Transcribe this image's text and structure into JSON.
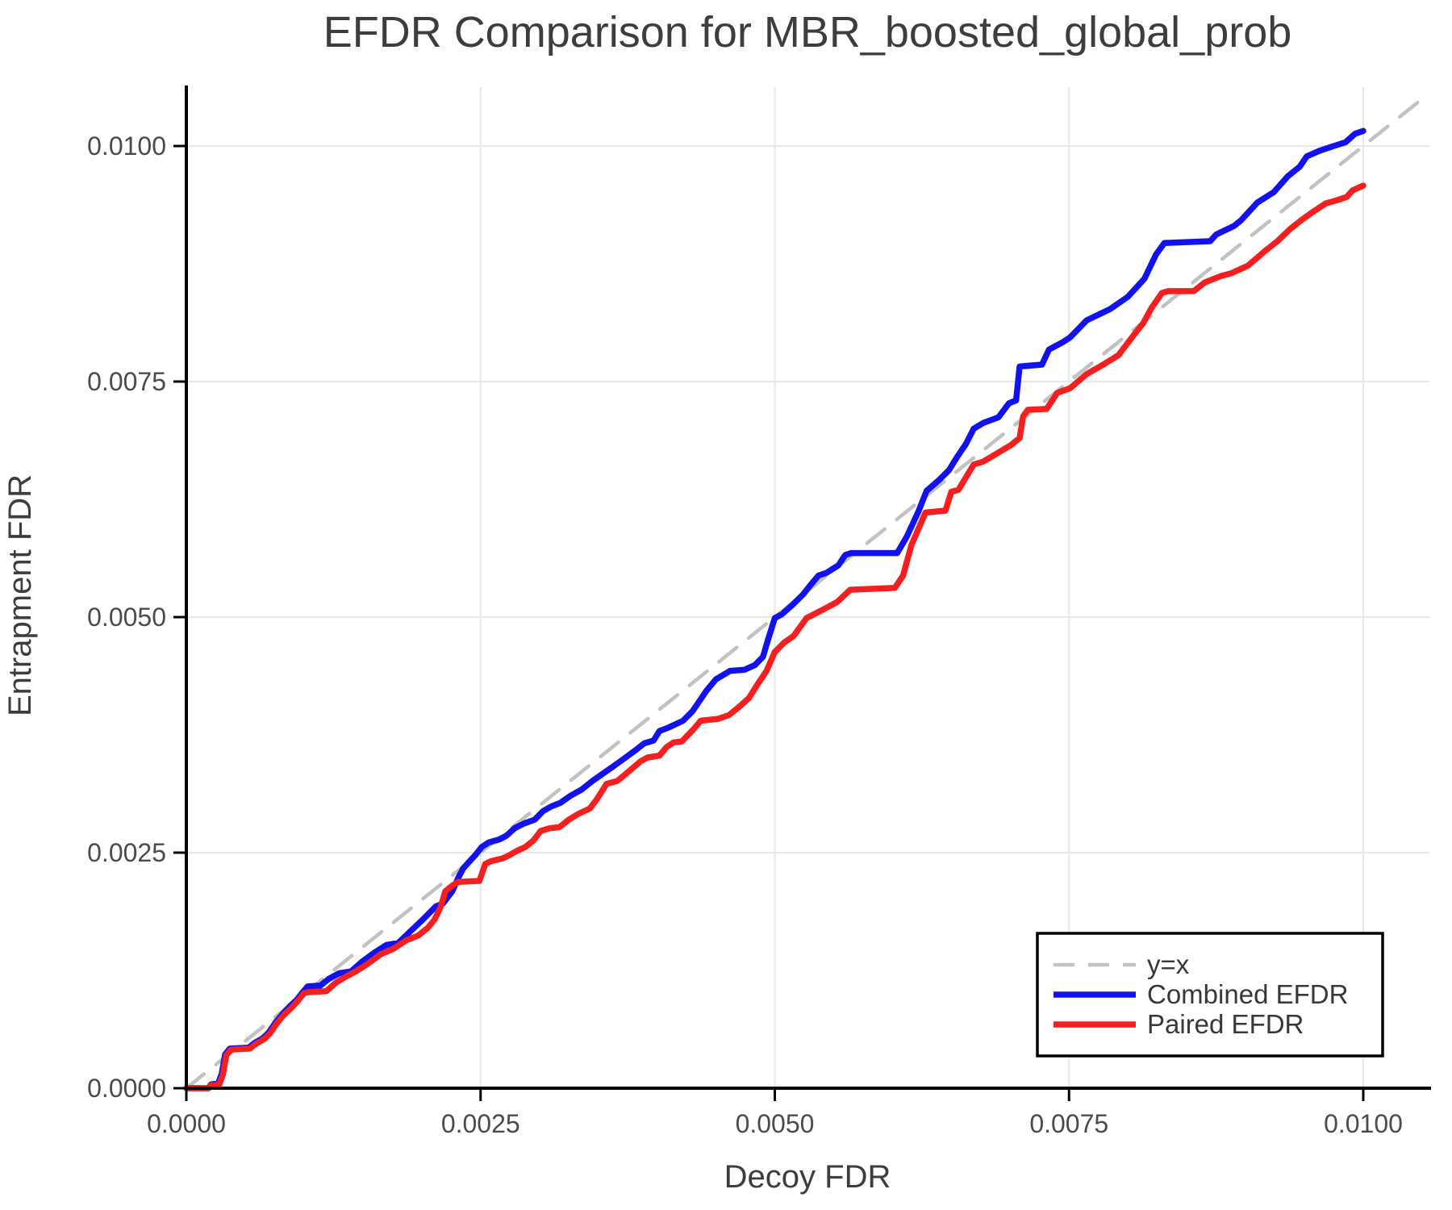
{
  "title": "EFDR Comparison for MBR_boosted_global_prob",
  "axes": {
    "x_label": "Decoy FDR",
    "y_label": "Entrapment FDR",
    "x_ticks": [
      {
        "value": 0.0,
        "label": "0.0000"
      },
      {
        "value": 0.0025,
        "label": "0.0025"
      },
      {
        "value": 0.005,
        "label": "0.0050"
      },
      {
        "value": 0.0075,
        "label": "0.0075"
      },
      {
        "value": 0.01,
        "label": "0.0100"
      }
    ],
    "y_ticks": [
      {
        "value": 0.0,
        "label": "0.0000"
      },
      {
        "value": 0.0025,
        "label": "0.0025"
      },
      {
        "value": 0.005,
        "label": "0.0050"
      },
      {
        "value": 0.0075,
        "label": "0.0075"
      },
      {
        "value": 0.01,
        "label": "0.0100"
      }
    ]
  },
  "legend": {
    "items": [
      {
        "label": "y=x",
        "color": "#c2c2c2",
        "dashed": true
      },
      {
        "label": "Combined EFDR",
        "color": "#1212ef",
        "dashed": false
      },
      {
        "label": "Paired EFDR",
        "color": "#f51f1f",
        "dashed": false
      }
    ]
  },
  "colors": {
    "identity": "#c2c2c2",
    "combined": "#1212ef",
    "paired": "#f51f1f",
    "grid": "#e7e7e7",
    "spine": "#000000"
  },
  "chart_data": {
    "type": "line",
    "title": "EFDR Comparison for MBR_boosted_global_prob",
    "xlabel": "Decoy FDR",
    "ylabel": "Entrapment FDR",
    "xlim": [
      0.0,
      0.01056
    ],
    "ylim": [
      0.0,
      0.01063
    ],
    "grid": true,
    "legend_position": "lower right",
    "series": [
      {
        "name": "y=x",
        "style": "dashed",
        "color": "#c2c2c2",
        "points": [
          [
            0.0,
            0.0
          ],
          [
            0.01056,
            0.01056
          ]
        ]
      },
      {
        "name": "Combined EFDR",
        "style": "solid",
        "color": "#1212ef",
        "points": [
          [
            0.0,
            0.0
          ],
          [
            0.00019,
            0.0
          ],
          [
            0.00021,
            4e-05
          ],
          [
            0.00027,
            5e-05
          ],
          [
            0.0003,
            0.00015
          ],
          [
            0.00033,
            0.00036
          ],
          [
            0.00037,
            0.00042
          ],
          [
            0.00053,
            0.00043
          ],
          [
            0.00058,
            0.00048
          ],
          [
            0.00065,
            0.00053
          ],
          [
            0.0007,
            0.00059
          ],
          [
            0.00076,
            0.0007
          ],
          [
            0.00082,
            0.00079
          ],
          [
            0.00088,
            0.00087
          ],
          [
            0.00094,
            0.00094
          ],
          [
            0.00099,
            0.00102
          ],
          [
            0.00103,
            0.00108
          ],
          [
            0.00114,
            0.00109
          ],
          [
            0.00121,
            0.00116
          ],
          [
            0.0013,
            0.00122
          ],
          [
            0.0014,
            0.00124
          ],
          [
            0.00149,
            0.00134
          ],
          [
            0.0016,
            0.00144
          ],
          [
            0.0017,
            0.00152
          ],
          [
            0.0018,
            0.00154
          ],
          [
            0.0019,
            0.00166
          ],
          [
            0.00201,
            0.00179
          ],
          [
            0.00212,
            0.00193
          ],
          [
            0.00218,
            0.00196
          ],
          [
            0.00226,
            0.00209
          ],
          [
            0.00231,
            0.00223
          ],
          [
            0.00235,
            0.00233
          ],
          [
            0.0024,
            0.0024
          ],
          [
            0.00246,
            0.00248
          ],
          [
            0.00251,
            0.00256
          ],
          [
            0.00257,
            0.00261
          ],
          [
            0.00266,
            0.00264
          ],
          [
            0.00272,
            0.00268
          ],
          [
            0.00279,
            0.00276
          ],
          [
            0.00287,
            0.00281
          ],
          [
            0.00296,
            0.00285
          ],
          [
            0.00303,
            0.00294
          ],
          [
            0.0031,
            0.00299
          ],
          [
            0.00318,
            0.00303
          ],
          [
            0.00326,
            0.0031
          ],
          [
            0.00336,
            0.00317
          ],
          [
            0.00345,
            0.00326
          ],
          [
            0.00354,
            0.00334
          ],
          [
            0.00361,
            0.0034
          ],
          [
            0.0037,
            0.00348
          ],
          [
            0.00382,
            0.00359
          ],
          [
            0.00389,
            0.00366
          ],
          [
            0.00397,
            0.00369
          ],
          [
            0.00402,
            0.00379
          ],
          [
            0.0041,
            0.00383
          ],
          [
            0.00422,
            0.0039
          ],
          [
            0.0043,
            0.004
          ],
          [
            0.00442,
            0.00422
          ],
          [
            0.0045,
            0.00434
          ],
          [
            0.00462,
            0.00443
          ],
          [
            0.00474,
            0.00444
          ],
          [
            0.00483,
            0.00449
          ],
          [
            0.0049,
            0.00458
          ],
          [
            0.00494,
            0.00475
          ],
          [
            0.005,
            0.00499
          ],
          [
            0.00506,
            0.00503
          ],
          [
            0.00515,
            0.00513
          ],
          [
            0.00524,
            0.00524
          ],
          [
            0.00531,
            0.00535
          ],
          [
            0.00537,
            0.00544
          ],
          [
            0.00544,
            0.00547
          ],
          [
            0.00554,
            0.00555
          ],
          [
            0.0056,
            0.00566
          ],
          [
            0.00565,
            0.00568
          ],
          [
            0.00604,
            0.00568
          ],
          [
            0.00612,
            0.00585
          ],
          [
            0.00622,
            0.00612
          ],
          [
            0.00629,
            0.00634
          ],
          [
            0.0064,
            0.00646
          ],
          [
            0.00648,
            0.00656
          ],
          [
            0.00655,
            0.0067
          ],
          [
            0.00662,
            0.00683
          ],
          [
            0.00669,
            0.007
          ],
          [
            0.00677,
            0.00706
          ],
          [
            0.0069,
            0.00712
          ],
          [
            0.00699,
            0.00727
          ],
          [
            0.00705,
            0.0073
          ],
          [
            0.00708,
            0.00766
          ],
          [
            0.00727,
            0.00768
          ],
          [
            0.00733,
            0.00784
          ],
          [
            0.00745,
            0.00792
          ],
          [
            0.00751,
            0.00797
          ],
          [
            0.00765,
            0.00815
          ],
          [
            0.00785,
            0.00827
          ],
          [
            0.008,
            0.0084
          ],
          [
            0.00814,
            0.00859
          ],
          [
            0.00824,
            0.00885
          ],
          [
            0.00831,
            0.00897
          ],
          [
            0.0087,
            0.00899
          ],
          [
            0.00875,
            0.00906
          ],
          [
            0.00885,
            0.00912
          ],
          [
            0.0089,
            0.00915
          ],
          [
            0.00896,
            0.00921
          ],
          [
            0.0091,
            0.0094
          ],
          [
            0.00924,
            0.00951
          ],
          [
            0.00936,
            0.00968
          ],
          [
            0.00946,
            0.00978
          ],
          [
            0.00952,
            0.00989
          ],
          [
            0.00963,
            0.00995
          ],
          [
            0.00975,
            0.01
          ],
          [
            0.00985,
            0.01004
          ],
          [
            0.00993,
            0.01013
          ],
          [
            0.01,
            0.01016
          ]
        ]
      },
      {
        "name": "Paired EFDR",
        "style": "solid",
        "color": "#f51f1f",
        "points": [
          [
            0.0,
            0.0
          ],
          [
            0.00019,
            0.0
          ],
          [
            0.00021,
            3e-05
          ],
          [
            0.00028,
            4e-05
          ],
          [
            0.00031,
            0.00014
          ],
          [
            0.00034,
            0.00035
          ],
          [
            0.00038,
            0.00041
          ],
          [
            0.00054,
            0.00042
          ],
          [
            0.00059,
            0.00047
          ],
          [
            0.00066,
            0.00052
          ],
          [
            0.00071,
            0.00058
          ],
          [
            0.00077,
            0.00069
          ],
          [
            0.00083,
            0.00078
          ],
          [
            0.00089,
            0.00085
          ],
          [
            0.00095,
            0.00093
          ],
          [
            0.001,
            0.00101
          ],
          [
            0.00104,
            0.00102
          ],
          [
            0.00119,
            0.00103
          ],
          [
            0.00127,
            0.00112
          ],
          [
            0.00135,
            0.00118
          ],
          [
            0.00144,
            0.00124
          ],
          [
            0.00153,
            0.00131
          ],
          [
            0.00165,
            0.00142
          ],
          [
            0.00176,
            0.00148
          ],
          [
            0.00187,
            0.00157
          ],
          [
            0.00197,
            0.00162
          ],
          [
            0.00205,
            0.0017
          ],
          [
            0.00211,
            0.00179
          ],
          [
            0.00216,
            0.00192
          ],
          [
            0.0022,
            0.00209
          ],
          [
            0.00226,
            0.00215
          ],
          [
            0.00231,
            0.00219
          ],
          [
            0.00249,
            0.0022
          ],
          [
            0.00254,
            0.00238
          ],
          [
            0.00259,
            0.00241
          ],
          [
            0.00269,
            0.00244
          ],
          [
            0.00274,
            0.00247
          ],
          [
            0.00281,
            0.00252
          ],
          [
            0.00288,
            0.00256
          ],
          [
            0.00295,
            0.00263
          ],
          [
            0.00301,
            0.00273
          ],
          [
            0.00309,
            0.00276
          ],
          [
            0.00317,
            0.00277
          ],
          [
            0.00325,
            0.00285
          ],
          [
            0.00333,
            0.00291
          ],
          [
            0.00343,
            0.00297
          ],
          [
            0.00349,
            0.00307
          ],
          [
            0.00357,
            0.00323
          ],
          [
            0.00366,
            0.00326
          ],
          [
            0.0037,
            0.0033
          ],
          [
            0.00386,
            0.00347
          ],
          [
            0.00392,
            0.00351
          ],
          [
            0.00402,
            0.00353
          ],
          [
            0.00408,
            0.00362
          ],
          [
            0.00414,
            0.00367
          ],
          [
            0.00421,
            0.00368
          ],
          [
            0.00431,
            0.00381
          ],
          [
            0.00437,
            0.0039
          ],
          [
            0.00452,
            0.00392
          ],
          [
            0.00461,
            0.00396
          ],
          [
            0.00469,
            0.00404
          ],
          [
            0.00478,
            0.00414
          ],
          [
            0.00486,
            0.0043
          ],
          [
            0.00493,
            0.00443
          ],
          [
            0.005,
            0.00463
          ],
          [
            0.00508,
            0.00473
          ],
          [
            0.00516,
            0.0048
          ],
          [
            0.00527,
            0.00499
          ],
          [
            0.00541,
            0.00508
          ],
          [
            0.00553,
            0.00516
          ],
          [
            0.00564,
            0.00529
          ],
          [
            0.00602,
            0.00531
          ],
          [
            0.00609,
            0.00544
          ],
          [
            0.00616,
            0.00576
          ],
          [
            0.00628,
            0.00611
          ],
          [
            0.00645,
            0.00613
          ],
          [
            0.0065,
            0.00633
          ],
          [
            0.00656,
            0.00635
          ],
          [
            0.00669,
            0.00662
          ],
          [
            0.00677,
            0.00665
          ],
          [
            0.007,
            0.00682
          ],
          [
            0.00708,
            0.0069
          ],
          [
            0.00711,
            0.00713
          ],
          [
            0.00715,
            0.0072
          ],
          [
            0.00731,
            0.00721
          ],
          [
            0.0074,
            0.00738
          ],
          [
            0.00751,
            0.00743
          ],
          [
            0.00765,
            0.00758
          ],
          [
            0.00779,
            0.00768
          ],
          [
            0.00792,
            0.00778
          ],
          [
            0.00806,
            0.00801
          ],
          [
            0.00813,
            0.00812
          ],
          [
            0.0082,
            0.00828
          ],
          [
            0.00829,
            0.00844
          ],
          [
            0.00834,
            0.00846
          ],
          [
            0.00856,
            0.00846
          ],
          [
            0.00865,
            0.00855
          ],
          [
            0.00879,
            0.00862
          ],
          [
            0.00888,
            0.00865
          ],
          [
            0.00902,
            0.00873
          ],
          [
            0.00916,
            0.00888
          ],
          [
            0.00927,
            0.00899
          ],
          [
            0.00938,
            0.00912
          ],
          [
            0.00947,
            0.00921
          ],
          [
            0.00956,
            0.00929
          ],
          [
            0.00968,
            0.00939
          ],
          [
            0.00979,
            0.00943
          ],
          [
            0.00986,
            0.00946
          ],
          [
            0.00991,
            0.00953
          ],
          [
            0.01,
            0.00958
          ]
        ]
      }
    ]
  }
}
